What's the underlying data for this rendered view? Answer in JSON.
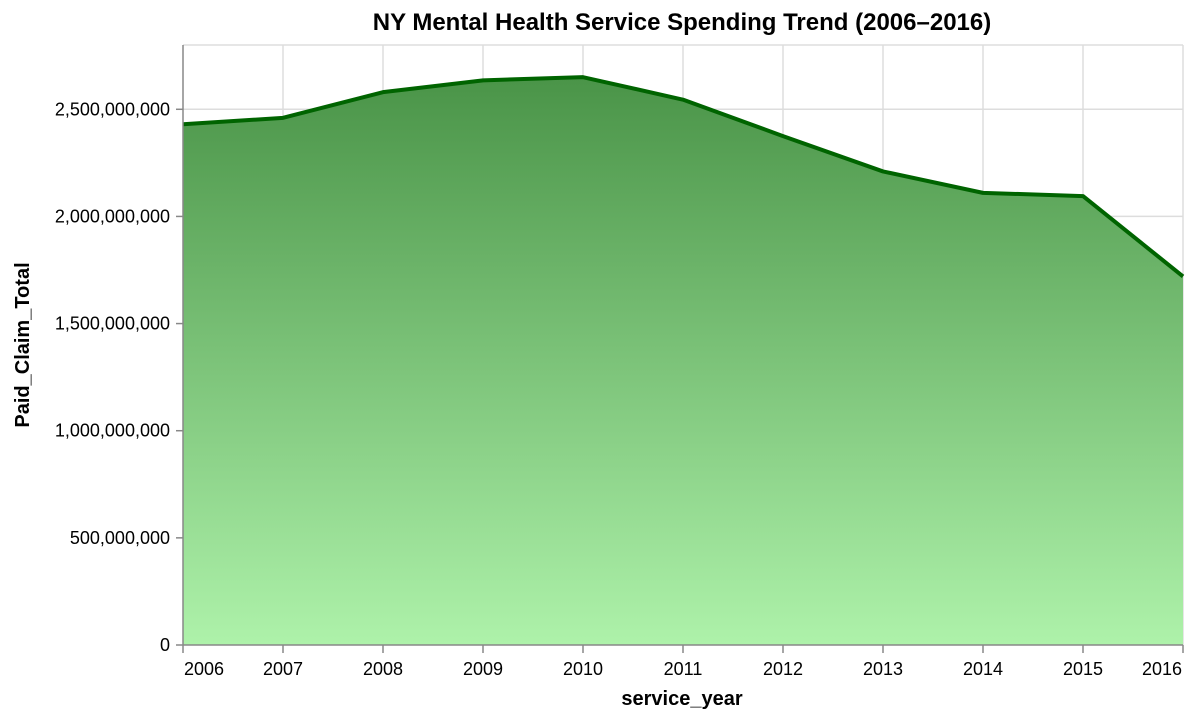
{
  "chart_data": {
    "type": "area",
    "title": "NY Mental Health Service Spending Trend (2006–2016)",
    "xlabel": "service_year",
    "ylabel": "Paid_Claim_Total",
    "x": [
      2006,
      2007,
      2008,
      2009,
      2010,
      2011,
      2012,
      2013,
      2014,
      2015,
      2016
    ],
    "values": [
      2430000000,
      2460000000,
      2580000000,
      2635000000,
      2650000000,
      2545000000,
      2375000000,
      2210000000,
      2110000000,
      2095000000,
      1720000000
    ],
    "x_ticks": [
      "2006",
      "2007",
      "2008",
      "2009",
      "2010",
      "2011",
      "2012",
      "2013",
      "2014",
      "2015",
      "2016"
    ],
    "y_ticks": [
      {
        "value": 0,
        "label": "0"
      },
      {
        "value": 500000000,
        "label": "500,000,000"
      },
      {
        "value": 1000000000,
        "label": "1,000,000,000"
      },
      {
        "value": 1500000000,
        "label": "1,500,000,000"
      },
      {
        "value": 2000000000,
        "label": "2,000,000,000"
      },
      {
        "value": 2500000000,
        "label": "2,500,000,000"
      }
    ],
    "xlim": [
      2006,
      2016
    ],
    "ylim": [
      0,
      2800000000
    ],
    "grid": true,
    "colors": {
      "line": "#006400",
      "fill_top": "#4a9448",
      "fill_bottom": "#aef2aa"
    }
  }
}
